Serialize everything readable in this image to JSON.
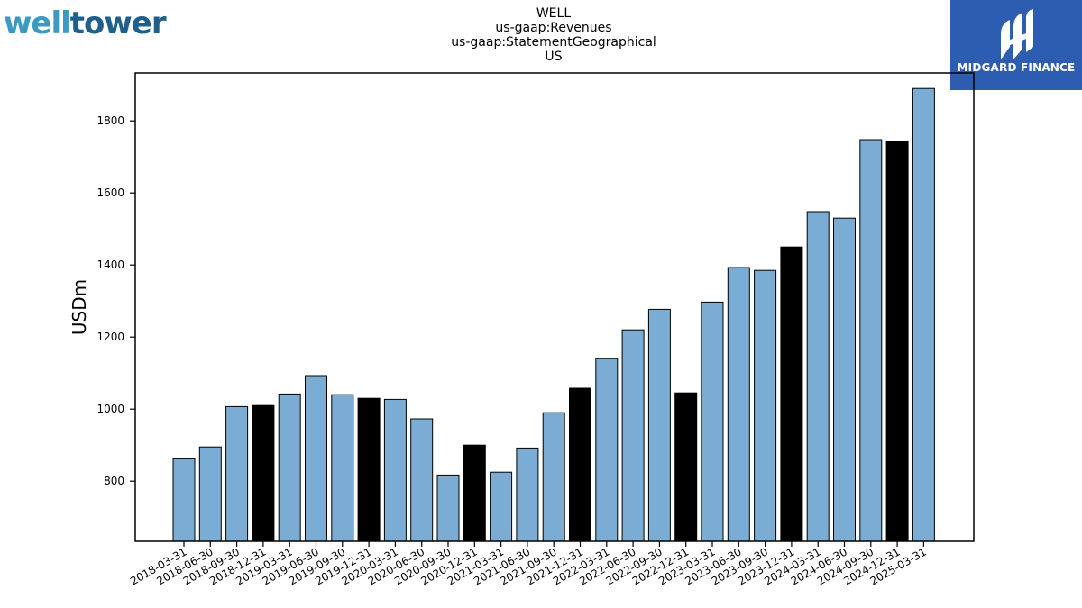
{
  "logos": {
    "left": {
      "part1": "well",
      "part2": "tower"
    },
    "right": {
      "name": "MIDGARD FINANCE"
    }
  },
  "chart_data": {
    "type": "bar",
    "title_lines": [
      "WELL",
      "us-gaap:Revenues",
      "us-gaap:StatementGeographical",
      "US"
    ],
    "xlabel": "",
    "ylabel": "USDm",
    "ylim": [
      633,
      1933
    ],
    "yticks": [
      800,
      1000,
      1200,
      1400,
      1600,
      1800
    ],
    "grid": false,
    "colors": {
      "quarter": "#7bacd3",
      "year_end": "#000000",
      "edge": "#000000"
    },
    "categories": [
      "2018-03-31",
      "2018-06-30",
      "2018-09-30",
      "2018-12-31",
      "2019-03-31",
      "2019-06-30",
      "2019-09-30",
      "2019-12-31",
      "2020-03-31",
      "2020-06-30",
      "2020-09-30",
      "2020-12-31",
      "2021-03-31",
      "2021-06-30",
      "2021-09-30",
      "2021-12-31",
      "2022-03-31",
      "2022-06-30",
      "2022-09-30",
      "2022-12-31",
      "2023-03-31",
      "2023-06-30",
      "2023-09-30",
      "2023-12-31",
      "2024-03-31",
      "2024-06-30",
      "2024-09-30",
      "2024-12-31",
      "2025-03-31"
    ],
    "values": [
      862,
      895,
      1007,
      1010,
      1042,
      1093,
      1040,
      1030,
      1027,
      973,
      817,
      900,
      825,
      892,
      990,
      1058,
      1140,
      1220,
      1277,
      1045,
      1297,
      1393,
      1385,
      1450,
      1548,
      1530,
      1748,
      1743,
      1890
    ],
    "year_end": [
      false,
      false,
      false,
      true,
      false,
      false,
      false,
      true,
      false,
      false,
      false,
      true,
      false,
      false,
      false,
      true,
      false,
      false,
      false,
      true,
      false,
      false,
      false,
      true,
      false,
      false,
      false,
      true,
      false
    ]
  }
}
